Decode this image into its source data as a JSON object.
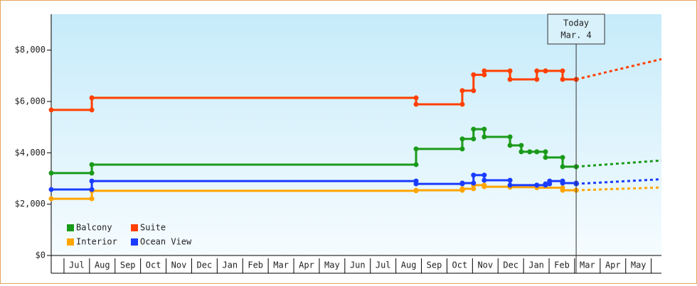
{
  "chart_data": {
    "type": "step",
    "annotation": {
      "title": "Today",
      "date": "Mar. 4",
      "x": 20.06
    },
    "xlim": [
      -0.5,
      23.4
    ],
    "xticks": [
      {
        "value": 0.5,
        "label": "Jul"
      },
      {
        "value": 1.5,
        "label": "Aug"
      },
      {
        "value": 2.5,
        "label": "Sep"
      },
      {
        "value": 3.5,
        "label": "Oct"
      },
      {
        "value": 4.5,
        "label": "Nov"
      },
      {
        "value": 5.5,
        "label": "Dec"
      },
      {
        "value": 6.5,
        "label": "Jan"
      },
      {
        "value": 7.5,
        "label": "Feb"
      },
      {
        "value": 8.5,
        "label": "Mar"
      },
      {
        "value": 9.5,
        "label": "Apr"
      },
      {
        "value": 10.5,
        "label": "May"
      },
      {
        "value": 11.5,
        "label": "Jun"
      },
      {
        "value": 12.5,
        "label": "Jul"
      },
      {
        "value": 13.5,
        "label": "Aug"
      },
      {
        "value": 14.5,
        "label": "Sep"
      },
      {
        "value": 15.5,
        "label": "Oct"
      },
      {
        "value": 16.5,
        "label": "Nov"
      },
      {
        "value": 17.5,
        "label": "Dec"
      },
      {
        "value": 18.5,
        "label": "Jan"
      },
      {
        "value": 19.5,
        "label": "Feb"
      },
      {
        "value": 20.5,
        "label": "Mar"
      },
      {
        "value": 21.5,
        "label": "Apr"
      },
      {
        "value": 22.5,
        "label": "May"
      }
    ],
    "ylim": [
      0,
      9400
    ],
    "yticks": [
      {
        "value": 0,
        "label": "$0"
      },
      {
        "value": 2000,
        "label": "$2,000"
      },
      {
        "value": 4000,
        "label": "$4,000"
      },
      {
        "value": 6000,
        "label": "$6,000"
      },
      {
        "value": 8000,
        "label": "$8,000"
      }
    ],
    "legend": "lower left",
    "forecast_x": [
      20.06,
      23.4
    ],
    "series": [
      {
        "name": "Balcony",
        "color": "#1a9a1a",
        "x": [
          -0.5,
          1.09,
          13.79,
          15.6,
          16.04,
          16.46,
          17.47,
          17.91,
          18.24,
          18.52,
          18.86,
          19.53,
          20.06
        ],
        "values": [
          3210,
          3540,
          4150,
          4540,
          4920,
          4620,
          4290,
          4040,
          4040,
          4040,
          3820,
          3460,
          3460
        ],
        "forecast": [
          3460,
          3700
        ]
      },
      {
        "name": "Suite",
        "color": "#ff4000",
        "x": [
          -0.5,
          1.09,
          13.79,
          15.6,
          16.04,
          16.46,
          17.47,
          18.52,
          18.86,
          19.53,
          20.06
        ],
        "values": [
          5670,
          6140,
          5890,
          6420,
          7040,
          7190,
          6860,
          7190,
          7190,
          6860,
          6860
        ],
        "forecast": [
          6860,
          7650
        ]
      },
      {
        "name": "Interior",
        "color": "#ffa500",
        "x": [
          -0.5,
          1.09,
          13.79,
          15.6,
          16.04,
          16.46,
          17.47,
          18.52,
          19.53,
          20.06
        ],
        "values": [
          2210,
          2520,
          2540,
          2600,
          2740,
          2680,
          2660,
          2640,
          2540,
          2540
        ],
        "forecast": [
          2540,
          2650
        ]
      },
      {
        "name": "Ocean View",
        "color": "#1a3cff",
        "x": [
          -0.5,
          1.09,
          13.79,
          15.6,
          16.04,
          16.46,
          17.47,
          18.52,
          18.86,
          19.02,
          19.53,
          20.06
        ],
        "values": [
          2570,
          2900,
          2790,
          2820,
          3130,
          2930,
          2740,
          2740,
          2790,
          2900,
          2820,
          2790
        ],
        "forecast": [
          2790,
          2970
        ]
      }
    ]
  }
}
